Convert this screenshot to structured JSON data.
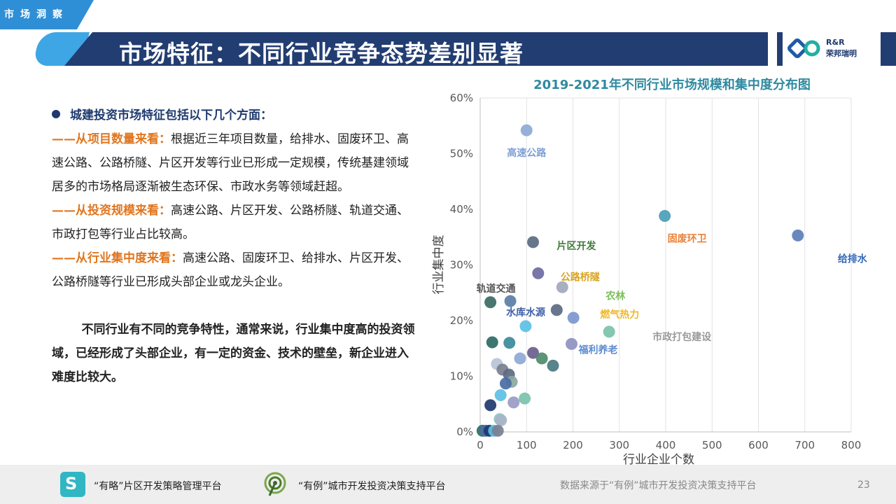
{
  "header": {
    "section_tag": "市场洞察",
    "title": "市场特征：不同行业竞争态势差别显著",
    "logo_line1": "R&R",
    "logo_line2": "荣邦瑞明"
  },
  "left": {
    "bullet": "城建投资市场特征包括以下几个方面：",
    "items": [
      {
        "label": "——从项目数量来看：",
        "text": "根据近三年项目数量，给排水、固废环卫、高速公路、公路桥隧、片区开发等行业已形成一定规模，传统基建领域居多的市场格局逐渐被生态环保、市政水务等领域赶超。"
      },
      {
        "label": "——从投资规模来看：",
        "text": "高速公路、片区开发、公路桥隧、轨道交通、市政打包等行业占比较高。"
      },
      {
        "label": "——从行业集中度来看：",
        "text": "高速公路、固废环卫、给排水、片区开发、公路桥隧等行业已形成头部企业或龙头企业。"
      }
    ],
    "summary": "不同行业有不同的竞争特性，通常来说，行业集中度高的投资领域，已经形成了头部企业，有一定的资金、技术的壁垒，新企业进入难度比较大。"
  },
  "chart_data": {
    "type": "scatter",
    "title": "2019-2021年不同行业市场规模和集中度分布图",
    "xlabel": "行业企业个数",
    "ylabel": "行业集中度",
    "xlim": [
      0,
      800
    ],
    "ylim": [
      0,
      60
    ],
    "x_ticks": [
      "0",
      "100",
      "200",
      "300",
      "400",
      "500",
      "600",
      "700",
      "800"
    ],
    "y_ticks": [
      "0%",
      "10%",
      "20%",
      "30%",
      "40%",
      "50%",
      "60%"
    ],
    "grid": "vertical",
    "points": [
      {
        "x": 100,
        "y": 54.2,
        "color": "#8ea9d6",
        "label": "高速公路",
        "label_color": "#7f9fd6"
      },
      {
        "x": 398,
        "y": 38.8,
        "color": "#4aa0b7",
        "label": "固废环卫",
        "label_color": "#e8823a"
      },
      {
        "x": 685,
        "y": 35.3,
        "color": "#5b7fb7",
        "label": "给排水",
        "label_color": "#3569b8"
      },
      {
        "x": 114,
        "y": 34.1,
        "color": "#5b6a82",
        "label": "片区开发",
        "label_color": "#3f7a3a"
      },
      {
        "x": 125,
        "y": 28.5,
        "color": "#6e6aa3",
        "label": "公路桥隧",
        "label_color": "#d8a41f"
      },
      {
        "x": 177,
        "y": 26.0,
        "color": "#9fa8bb",
        "label": "农林",
        "label_color": "#7cbf5a"
      },
      {
        "x": 22,
        "y": 23.3,
        "color": "#3a6a63",
        "label": "轨道交通",
        "label_color": "#555555"
      },
      {
        "x": 65,
        "y": 23.5,
        "color": "#5a7ea5",
        "label": "水库水源",
        "label_color": "#3d5fa8"
      },
      {
        "x": 165,
        "y": 21.9,
        "color": "#5b6a82",
        "label": "燃气热力",
        "label_color": "#f0b829"
      },
      {
        "x": 201,
        "y": 20.5,
        "color": "#7c97cf",
        "label": "",
        "label_color": ""
      },
      {
        "x": 98,
        "y": 19.0,
        "color": "#5bc0e6",
        "label": "",
        "label_color": ""
      },
      {
        "x": 278,
        "y": 18.0,
        "color": "#7ac2ad",
        "label": "市政打包建设",
        "label_color": "#9a9a9a"
      },
      {
        "x": 197,
        "y": 15.8,
        "color": "#8f90c0",
        "label": "福利养老",
        "label_color": "#5b8bd0"
      },
      {
        "x": 26,
        "y": 16.1,
        "color": "#2e6b66",
        "label": "",
        "label_color": ""
      },
      {
        "x": 63,
        "y": 16.0,
        "color": "#3a8a9a",
        "label": "",
        "label_color": ""
      },
      {
        "x": 114,
        "y": 14.2,
        "color": "#6a5e8c",
        "label": "",
        "label_color": ""
      },
      {
        "x": 133,
        "y": 13.2,
        "color": "#4f8a6a",
        "label": "",
        "label_color": ""
      },
      {
        "x": 157,
        "y": 11.9,
        "color": "#4a7a82",
        "label": "",
        "label_color": ""
      },
      {
        "x": 86,
        "y": 13.2,
        "color": "#8ea9d6",
        "label": "",
        "label_color": ""
      },
      {
        "x": 36,
        "y": 12.2,
        "color": "#b8c3d8",
        "label": "",
        "label_color": ""
      },
      {
        "x": 48,
        "y": 11.2,
        "color": "#7b7f8e",
        "label": "",
        "label_color": ""
      },
      {
        "x": 62,
        "y": 10.3,
        "color": "#5b6a82",
        "label": "",
        "label_color": ""
      },
      {
        "x": 68,
        "y": 9.0,
        "color": "#8aa8a0",
        "label": "",
        "label_color": ""
      },
      {
        "x": 55,
        "y": 8.7,
        "color": "#4a6ca5",
        "label": "",
        "label_color": ""
      },
      {
        "x": 44,
        "y": 6.6,
        "color": "#5bc0e6",
        "label": "",
        "label_color": ""
      },
      {
        "x": 96,
        "y": 6.0,
        "color": "#7ac2ad",
        "label": "",
        "label_color": ""
      },
      {
        "x": 72,
        "y": 5.3,
        "color": "#9b9ac6",
        "label": "",
        "label_color": ""
      },
      {
        "x": 22,
        "y": 4.8,
        "color": "#1f3a6e",
        "label": "",
        "label_color": ""
      },
      {
        "x": 42,
        "y": 2.3,
        "color": "#8fc7c0",
        "label": "",
        "label_color": ""
      },
      {
        "x": 45,
        "y": 2.1,
        "color": "#a8b4c8",
        "label": "",
        "label_color": ""
      },
      {
        "x": 5,
        "y": 0.2,
        "color": "#2e6b66",
        "label": "",
        "label_color": ""
      },
      {
        "x": 12,
        "y": 0.2,
        "color": "#4a6ca5",
        "label": "",
        "label_color": ""
      },
      {
        "x": 20,
        "y": 0.2,
        "color": "#1f3a6e",
        "label": "",
        "label_color": ""
      },
      {
        "x": 30,
        "y": 0.2,
        "color": "#5bc0e6",
        "label": "",
        "label_color": ""
      },
      {
        "x": 38,
        "y": 0.2,
        "color": "#7b7f8e",
        "label": "",
        "label_color": ""
      }
    ]
  },
  "footer": {
    "platform1_icon": "S",
    "platform1": "“有略”片区开发策略管理平台",
    "platform2": "“有例”城市开发投资决策支持平台",
    "source": "数据来源于“有例”城市开发投资决策支持平台",
    "page_number": "23"
  }
}
